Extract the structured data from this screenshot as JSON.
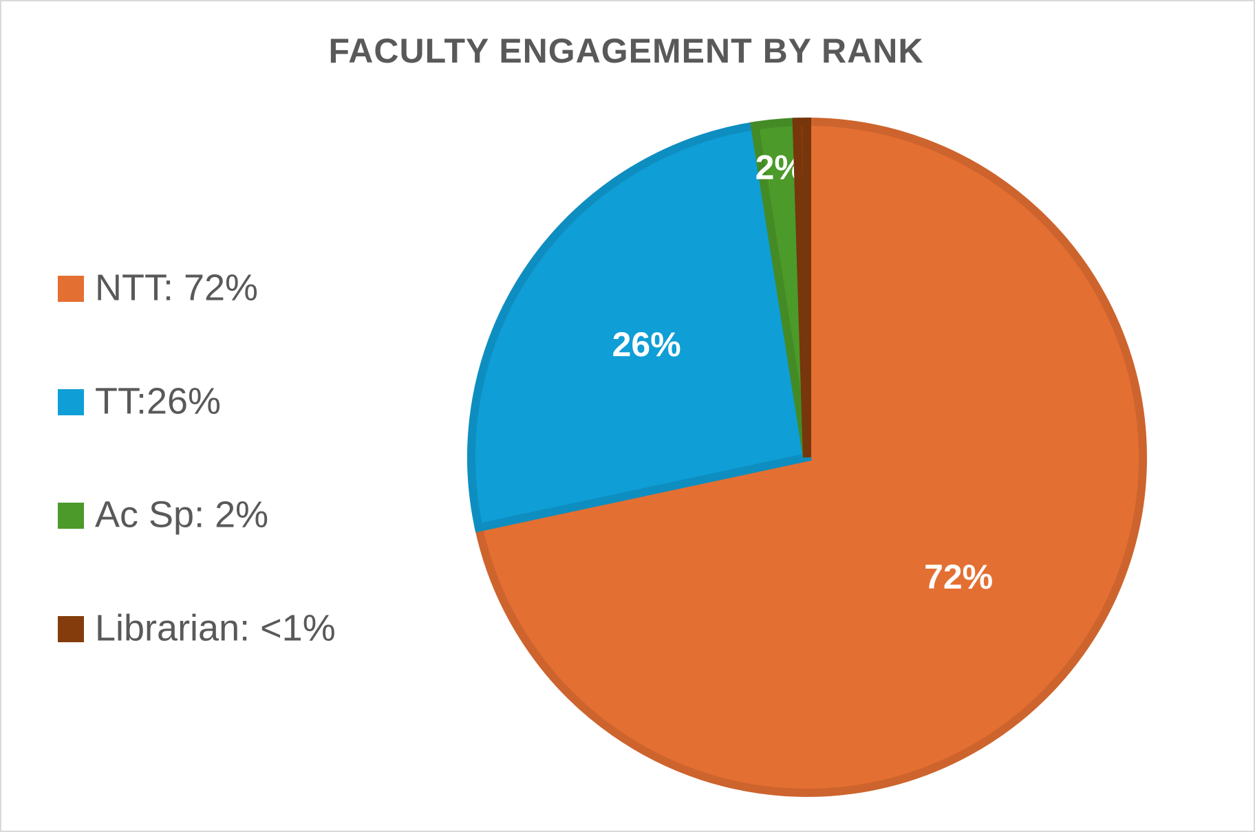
{
  "chart_data": {
    "type": "pie",
    "title": "FACULTY ENGAGEMENT BY RANK",
    "categories": [
      "NTT: 72%",
      "TT:26%",
      "Ac Sp: 2%",
      "Librarian: <1%"
    ],
    "values": [
      72,
      26,
      2,
      0.5
    ],
    "value_labels": [
      "72%",
      "26%",
      "2%",
      null
    ],
    "colors": [
      "#e46f32",
      "#0f9ed5",
      "#4b9a2a",
      "#843c0c"
    ],
    "legend": "left"
  }
}
